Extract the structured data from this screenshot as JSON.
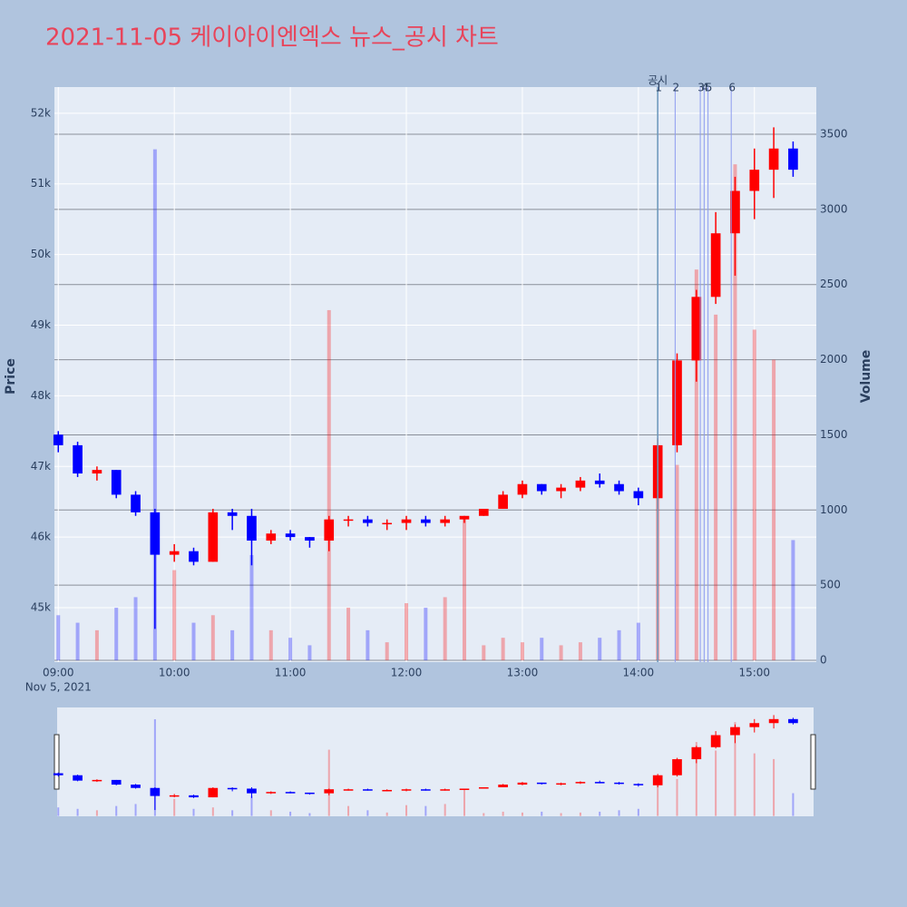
{
  "chart_data": {
    "type": "candlestick",
    "title": "2021-11-05 케이아이엔엑스 뉴스_공시 차트",
    "y_label": "Price",
    "y2_label": "Volume",
    "x_date_label": "Nov 5, 2021",
    "up_color": "#ff0000",
    "down_color": "#0000ff",
    "x": [
      "2021-11-05 09:00",
      "2021-11-05 09:10",
      "2021-11-05 09:20",
      "2021-11-05 09:30",
      "2021-11-05 09:40",
      "2021-11-05 09:50",
      "2021-11-05 10:00",
      "2021-11-05 10:10",
      "2021-11-05 10:20",
      "2021-11-05 10:30",
      "2021-11-05 10:40",
      "2021-11-05 10:50",
      "2021-11-05 11:00",
      "2021-11-05 11:10",
      "2021-11-05 11:20",
      "2021-11-05 11:30",
      "2021-11-05 11:40",
      "2021-11-05 11:50",
      "2021-11-05 12:00",
      "2021-11-05 12:10",
      "2021-11-05 12:20",
      "2021-11-05 12:30",
      "2021-11-05 12:40",
      "2021-11-05 12:50",
      "2021-11-05 13:00",
      "2021-11-05 13:10",
      "2021-11-05 13:20",
      "2021-11-05 13:30",
      "2021-11-05 13:40",
      "2021-11-05 13:50",
      "2021-11-05 14:00",
      "2021-11-05 14:10",
      "2021-11-05 14:20",
      "2021-11-05 14:30",
      "2021-11-05 14:40",
      "2021-11-05 14:50",
      "2021-11-05 15:00",
      "2021-11-05 15:10",
      "2021-11-05 15:20"
    ],
    "open": [
      47450,
      47300,
      46900,
      46950,
      46600,
      46350,
      45750,
      45800,
      45650,
      46350,
      46300,
      45950,
      46050,
      46000,
      45950,
      46250,
      46250,
      46200,
      46200,
      46250,
      46200,
      46250,
      46300,
      46400,
      46600,
      46750,
      46650,
      46700,
      46800,
      46750,
      46650,
      46550,
      47300,
      48500,
      49400,
      50300,
      50900,
      51200,
      51500
    ],
    "high": [
      47500,
      47350,
      47000,
      46950,
      46650,
      46400,
      45900,
      45850,
      46400,
      46400,
      46400,
      46100,
      46100,
      46000,
      46300,
      46300,
      46300,
      46250,
      46300,
      46300,
      46300,
      46300,
      46400,
      46650,
      46800,
      46750,
      46750,
      46850,
      46900,
      46800,
      46700,
      47400,
      48600,
      49500,
      50600,
      51100,
      51500,
      51800,
      51600
    ],
    "low": [
      47200,
      46850,
      46800,
      46550,
      46300,
      44700,
      45650,
      45600,
      45650,
      46100,
      45600,
      45900,
      45950,
      45850,
      45800,
      46150,
      46150,
      46100,
      46100,
      46150,
      46150,
      46200,
      46300,
      46400,
      46550,
      46600,
      46550,
      46650,
      46700,
      46600,
      46450,
      46400,
      47200,
      48200,
      49300,
      49700,
      50500,
      50800,
      51100
    ],
    "close": [
      47300,
      46900,
      46950,
      46600,
      46350,
      45750,
      45800,
      45650,
      46350,
      46300,
      45950,
      46050,
      46000,
      45950,
      46250,
      46250,
      46200,
      46200,
      46250,
      46200,
      46250,
      46300,
      46400,
      46600,
      46750,
      46650,
      46700,
      46800,
      46750,
      46650,
      46550,
      47300,
      48500,
      49400,
      50300,
      50900,
      51200,
      51500,
      51200
    ],
    "volume": [
      300,
      250,
      200,
      350,
      420,
      3400,
      600,
      250,
      300,
      200,
      700,
      200,
      150,
      100,
      2330,
      350,
      200,
      120,
      380,
      350,
      420,
      950,
      100,
      150,
      120,
      150,
      100,
      120,
      150,
      200,
      250,
      1100,
      1300,
      2600,
      2300,
      3300,
      2200,
      2000,
      800
    ],
    "xlim": [
      "2021-11-05 08:58",
      "2021-11-05 15:32"
    ],
    "xticks": [
      {
        "value": "2021-11-05 09:00",
        "label": "09:00"
      },
      {
        "value": "2021-11-05 10:00",
        "label": "10:00"
      },
      {
        "value": "2021-11-05 11:00",
        "label": "11:00"
      },
      {
        "value": "2021-11-05 12:00",
        "label": "12:00"
      },
      {
        "value": "2021-11-05 13:00",
        "label": "13:00"
      },
      {
        "value": "2021-11-05 14:00",
        "label": "14:00"
      },
      {
        "value": "2021-11-05 15:00",
        "label": "15:00"
      }
    ],
    "ylim": [
      44230,
      52370
    ],
    "yticks": [
      {
        "value": 45000,
        "label": "45k"
      },
      {
        "value": 46000,
        "label": "46k"
      },
      {
        "value": 47000,
        "label": "47k"
      },
      {
        "value": 48000,
        "label": "48k"
      },
      {
        "value": 49000,
        "label": "49k"
      },
      {
        "value": 50000,
        "label": "50k"
      },
      {
        "value": 51000,
        "label": "51k"
      },
      {
        "value": 52000,
        "label": "52k"
      }
    ],
    "y2lim": [
      -12,
      3814
    ],
    "y2ticks": [
      0,
      500,
      1000,
      1500,
      2000,
      2500,
      3000,
      3500
    ],
    "disclosure": {
      "x": "2021-11-05 14:10",
      "label": "공시",
      "color": "#2e8b57"
    },
    "news": [
      {
        "x": "2021-11-05 14:10",
        "label": "1"
      },
      {
        "x": "2021-11-05 14:19",
        "label": "2"
      },
      {
        "x": "2021-11-05 14:32",
        "label": "3"
      },
      {
        "x": "2021-11-05 14:34",
        "label": "4"
      },
      {
        "x": "2021-11-05 14:36",
        "label": "5"
      },
      {
        "x": "2021-11-05 14:48",
        "label": "6"
      }
    ],
    "news_color": "#8c9cf0"
  }
}
